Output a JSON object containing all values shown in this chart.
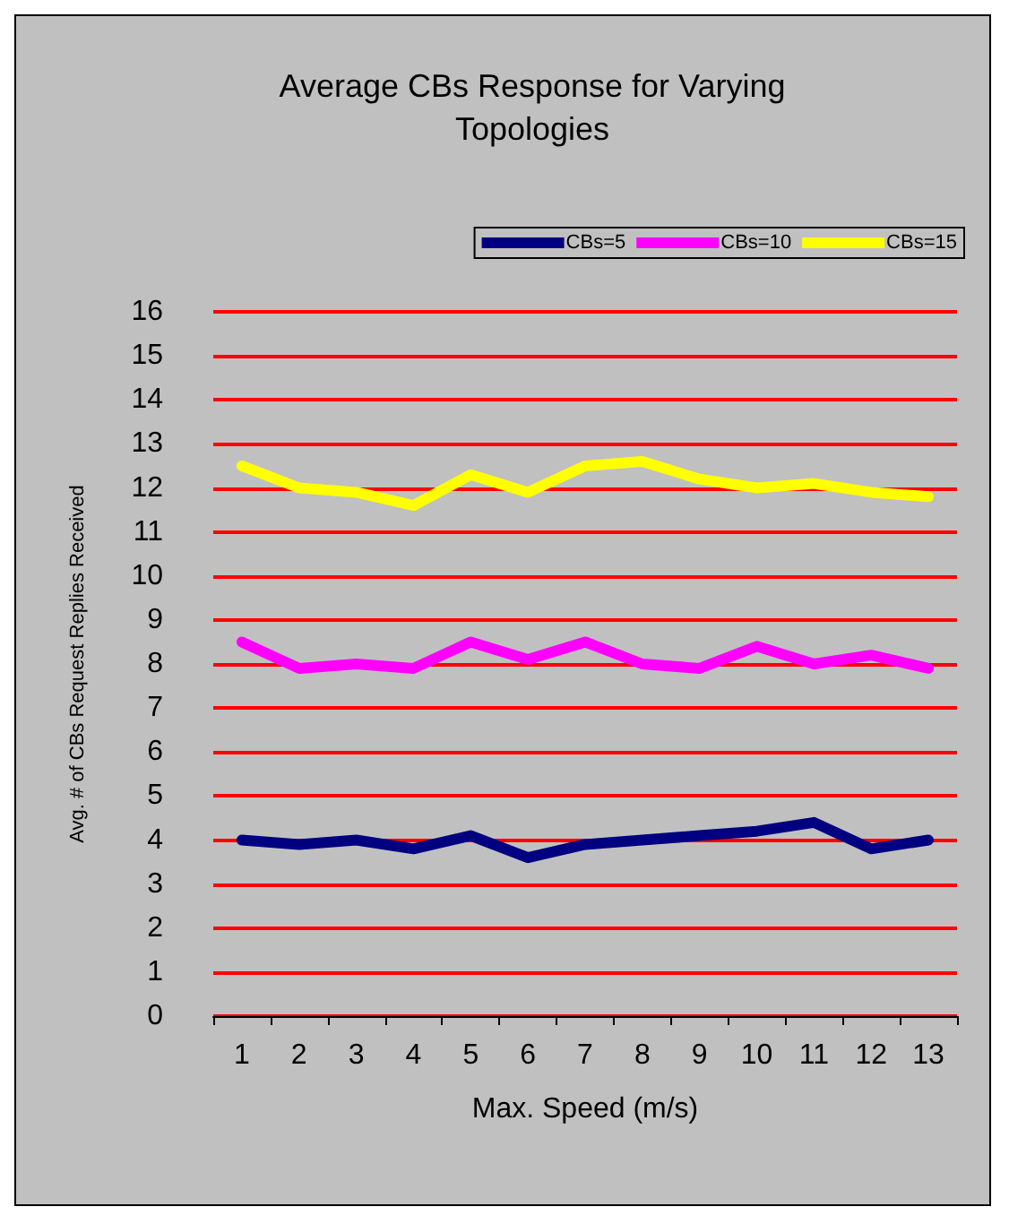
{
  "chart_data": {
    "type": "line",
    "title": "Average CBs Response for Varying\nTopologies",
    "xlabel": "Max. Speed (m/s)",
    "ylabel": "Avg. # of CBs Request Replies Received",
    "categories": [
      "1",
      "2",
      "3",
      "4",
      "5",
      "6",
      "7",
      "8",
      "9",
      "10",
      "11",
      "12",
      "13"
    ],
    "series": [
      {
        "name": "CBs=5",
        "color": "#000080",
        "values": [
          4.0,
          3.9,
          4.0,
          3.8,
          4.1,
          3.6,
          3.9,
          4.0,
          4.1,
          4.2,
          4.4,
          3.8,
          4.0
        ]
      },
      {
        "name": "CBs=10",
        "color": "#ff00ff",
        "values": [
          8.5,
          7.9,
          8.0,
          7.9,
          8.5,
          8.1,
          8.5,
          8.0,
          7.9,
          8.4,
          8.0,
          8.2,
          7.9
        ]
      },
      {
        "name": "CBs=15",
        "color": "#ffff00",
        "values": [
          12.5,
          12.0,
          11.9,
          11.6,
          12.3,
          11.9,
          12.5,
          12.6,
          12.2,
          12.0,
          12.1,
          11.9,
          11.8
        ]
      }
    ],
    "ylim": [
      0,
      16
    ],
    "yticks": [
      0,
      1,
      2,
      3,
      4,
      5,
      6,
      7,
      8,
      9,
      10,
      11,
      12,
      13,
      14,
      15,
      16
    ],
    "grid": "y",
    "legend": "top right",
    "marker": "none",
    "line_style": "solid"
  }
}
